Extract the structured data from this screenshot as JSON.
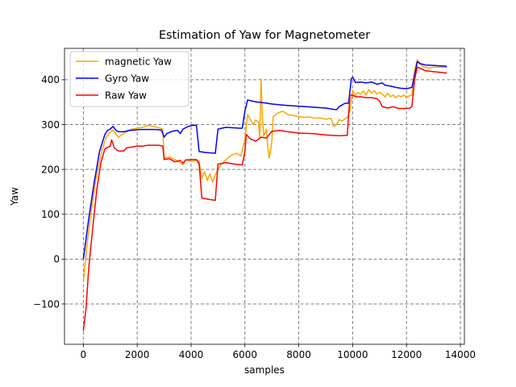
{
  "chart_data": {
    "type": "line",
    "title": "Estimation of Yaw for Magnetometer",
    "xlabel": "samples",
    "ylabel": "Yaw",
    "xlim": [
      -700,
      14150
    ],
    "ylim": [
      -190,
      470
    ],
    "x_ticks": [
      0,
      2000,
      4000,
      6000,
      8000,
      10000,
      12000,
      14000
    ],
    "x_tick_labels": [
      "0",
      "2000",
      "4000",
      "6000",
      "8000",
      "10000",
      "12000",
      "14000"
    ],
    "y_ticks": [
      -100,
      0,
      100,
      200,
      300,
      400
    ],
    "y_tick_labels": [
      "−100",
      "0",
      "100",
      "200",
      "300",
      "400"
    ],
    "grid": true,
    "legend_position": "top-left",
    "series": [
      {
        "name": "magnetic Yaw",
        "color": "#ffa500",
        "points": [
          [
            0,
            -50
          ],
          [
            150,
            40
          ],
          [
            300,
            110
          ],
          [
            500,
            190
          ],
          [
            700,
            245
          ],
          [
            850,
            272
          ],
          [
            1000,
            283
          ],
          [
            1100,
            288
          ],
          [
            1200,
            280
          ],
          [
            1300,
            272
          ],
          [
            1450,
            278
          ],
          [
            1600,
            284
          ],
          [
            1800,
            290
          ],
          [
            2000,
            292
          ],
          [
            2200,
            294
          ],
          [
            2400,
            298
          ],
          [
            2600,
            296
          ],
          [
            2800,
            293
          ],
          [
            2950,
            290
          ],
          [
            3000,
            225
          ],
          [
            3200,
            228
          ],
          [
            3400,
            222
          ],
          [
            3600,
            215
          ],
          [
            3700,
            210
          ],
          [
            3800,
            222
          ],
          [
            4000,
            218
          ],
          [
            4200,
            220
          ],
          [
            4300,
            218
          ],
          [
            4400,
            180
          ],
          [
            4500,
            195
          ],
          [
            4600,
            175
          ],
          [
            4700,
            190
          ],
          [
            4800,
            172
          ],
          [
            4900,
            188
          ],
          [
            5000,
            200
          ],
          [
            5100,
            210
          ],
          [
            5300,
            222
          ],
          [
            5500,
            232
          ],
          [
            5700,
            236
          ],
          [
            5850,
            230
          ],
          [
            6000,
            268
          ],
          [
            6100,
            322
          ],
          [
            6200,
            312
          ],
          [
            6300,
            300
          ],
          [
            6400,
            310
          ],
          [
            6500,
            305
          ],
          [
            6550,
            270
          ],
          [
            6600,
            402
          ],
          [
            6650,
            310
          ],
          [
            6700,
            275
          ],
          [
            6800,
            290
          ],
          [
            6850,
            250
          ],
          [
            6900,
            225
          ],
          [
            7000,
            262
          ],
          [
            7050,
            318
          ],
          [
            7200,
            325
          ],
          [
            7400,
            330
          ],
          [
            7600,
            322
          ],
          [
            7800,
            320
          ],
          [
            8000,
            318
          ],
          [
            8200,
            316
          ],
          [
            8400,
            317
          ],
          [
            8600,
            314
          ],
          [
            8800,
            315
          ],
          [
            9000,
            312
          ],
          [
            9200,
            314
          ],
          [
            9300,
            296
          ],
          [
            9400,
            300
          ],
          [
            9500,
            311
          ],
          [
            9600,
            308
          ],
          [
            9800,
            316
          ],
          [
            9900,
            330
          ],
          [
            9950,
            355
          ],
          [
            10000,
            376
          ],
          [
            10100,
            365
          ],
          [
            10200,
            372
          ],
          [
            10300,
            368
          ],
          [
            10400,
            375
          ],
          [
            10500,
            366
          ],
          [
            10600,
            378
          ],
          [
            10700,
            370
          ],
          [
            10800,
            376
          ],
          [
            10900,
            368
          ],
          [
            11000,
            372
          ],
          [
            11100,
            368
          ],
          [
            11200,
            362
          ],
          [
            11300,
            370
          ],
          [
            11400,
            362
          ],
          [
            11500,
            366
          ],
          [
            11600,
            360
          ],
          [
            11700,
            365
          ],
          [
            11800,
            362
          ],
          [
            11900,
            366
          ],
          [
            12000,
            360
          ],
          [
            12100,
            364
          ],
          [
            12200,
            366
          ],
          [
            12300,
            420
          ],
          [
            12400,
            445
          ],
          [
            12500,
            437
          ],
          [
            12600,
            430
          ],
          [
            12800,
            426
          ],
          [
            13000,
            428
          ],
          [
            13200,
            428
          ],
          [
            13500,
            428
          ]
        ]
      },
      {
        "name": "Gyro Yaw",
        "color": "#0000ff",
        "points": [
          [
            0,
            0
          ],
          [
            200,
            90
          ],
          [
            400,
            170
          ],
          [
            600,
            240
          ],
          [
            800,
            278
          ],
          [
            900,
            287
          ],
          [
            1000,
            290
          ],
          [
            1100,
            296
          ],
          [
            1200,
            288
          ],
          [
            1300,
            284
          ],
          [
            1500,
            284
          ],
          [
            1700,
            287
          ],
          [
            1900,
            288
          ],
          [
            2100,
            289
          ],
          [
            2400,
            289
          ],
          [
            2700,
            289
          ],
          [
            2900,
            288
          ],
          [
            3000,
            272
          ],
          [
            3100,
            280
          ],
          [
            3300,
            285
          ],
          [
            3500,
            287
          ],
          [
            3600,
            280
          ],
          [
            3700,
            290
          ],
          [
            3900,
            296
          ],
          [
            4100,
            299
          ],
          [
            4200,
            298
          ],
          [
            4300,
            240
          ],
          [
            4500,
            238
          ],
          [
            4700,
            237
          ],
          [
            4900,
            236
          ],
          [
            5000,
            290
          ],
          [
            5300,
            294
          ],
          [
            5500,
            293
          ],
          [
            5800,
            292
          ],
          [
            5900,
            292
          ],
          [
            6000,
            330
          ],
          [
            6100,
            355
          ],
          [
            6300,
            352
          ],
          [
            6500,
            350
          ],
          [
            6800,
            348
          ],
          [
            7000,
            346
          ],
          [
            7500,
            343
          ],
          [
            8000,
            341
          ],
          [
            8500,
            339
          ],
          [
            9000,
            337
          ],
          [
            9400,
            333
          ],
          [
            9500,
            340
          ],
          [
            9700,
            347
          ],
          [
            9850,
            348
          ],
          [
            9950,
            402
          ],
          [
            10000,
            406
          ],
          [
            10100,
            394
          ],
          [
            10300,
            395
          ],
          [
            10500,
            393
          ],
          [
            10700,
            395
          ],
          [
            10900,
            390
          ],
          [
            11100,
            393
          ],
          [
            11200,
            388
          ],
          [
            11400,
            386
          ],
          [
            11600,
            383
          ],
          [
            11800,
            381
          ],
          [
            12000,
            380
          ],
          [
            12200,
            383
          ],
          [
            12300,
            410
          ],
          [
            12400,
            440
          ],
          [
            12500,
            436
          ],
          [
            12700,
            433
          ],
          [
            13000,
            432
          ],
          [
            13500,
            430
          ]
        ]
      },
      {
        "name": "Raw Yaw",
        "color": "#ff0000",
        "points": [
          [
            0,
            -160
          ],
          [
            100,
            -110
          ],
          [
            200,
            -20
          ],
          [
            350,
            70
          ],
          [
            500,
            155
          ],
          [
            650,
            215
          ],
          [
            800,
            246
          ],
          [
            1000,
            252
          ],
          [
            1050,
            266
          ],
          [
            1150,
            248
          ],
          [
            1300,
            241
          ],
          [
            1500,
            241
          ],
          [
            1600,
            248
          ],
          [
            1800,
            250
          ],
          [
            2000,
            252
          ],
          [
            2200,
            252
          ],
          [
            2400,
            254
          ],
          [
            2600,
            254
          ],
          [
            2800,
            254
          ],
          [
            2950,
            252
          ],
          [
            3000,
            222
          ],
          [
            3200,
            224
          ],
          [
            3400,
            217
          ],
          [
            3600,
            220
          ],
          [
            3700,
            214
          ],
          [
            3800,
            221
          ],
          [
            4000,
            222
          ],
          [
            4200,
            222
          ],
          [
            4300,
            212
          ],
          [
            4400,
            136
          ],
          [
            4600,
            134
          ],
          [
            4800,
            132
          ],
          [
            4900,
            131
          ],
          [
            5000,
            212
          ],
          [
            5300,
            215
          ],
          [
            5600,
            212
          ],
          [
            5900,
            210
          ],
          [
            6000,
            240
          ],
          [
            6050,
            278
          ],
          [
            6200,
            268
          ],
          [
            6400,
            263
          ],
          [
            6600,
            272
          ],
          [
            6800,
            270
          ],
          [
            7000,
            285
          ],
          [
            7300,
            287
          ],
          [
            7600,
            284
          ],
          [
            8000,
            281
          ],
          [
            8500,
            280
          ],
          [
            9000,
            277
          ],
          [
            9500,
            275
          ],
          [
            9800,
            276
          ],
          [
            9900,
            365
          ],
          [
            10000,
            366
          ],
          [
            10100,
            362
          ],
          [
            10300,
            362
          ],
          [
            10500,
            360
          ],
          [
            10700,
            360
          ],
          [
            10900,
            358
          ],
          [
            11000,
            352
          ],
          [
            11100,
            340
          ],
          [
            11300,
            337
          ],
          [
            11500,
            340
          ],
          [
            11700,
            336
          ],
          [
            11900,
            336
          ],
          [
            12100,
            336
          ],
          [
            12200,
            340
          ],
          [
            12300,
            400
          ],
          [
            12400,
            428
          ],
          [
            12500,
            426
          ],
          [
            12700,
            420
          ],
          [
            13000,
            418
          ],
          [
            13500,
            415
          ]
        ]
      }
    ]
  }
}
